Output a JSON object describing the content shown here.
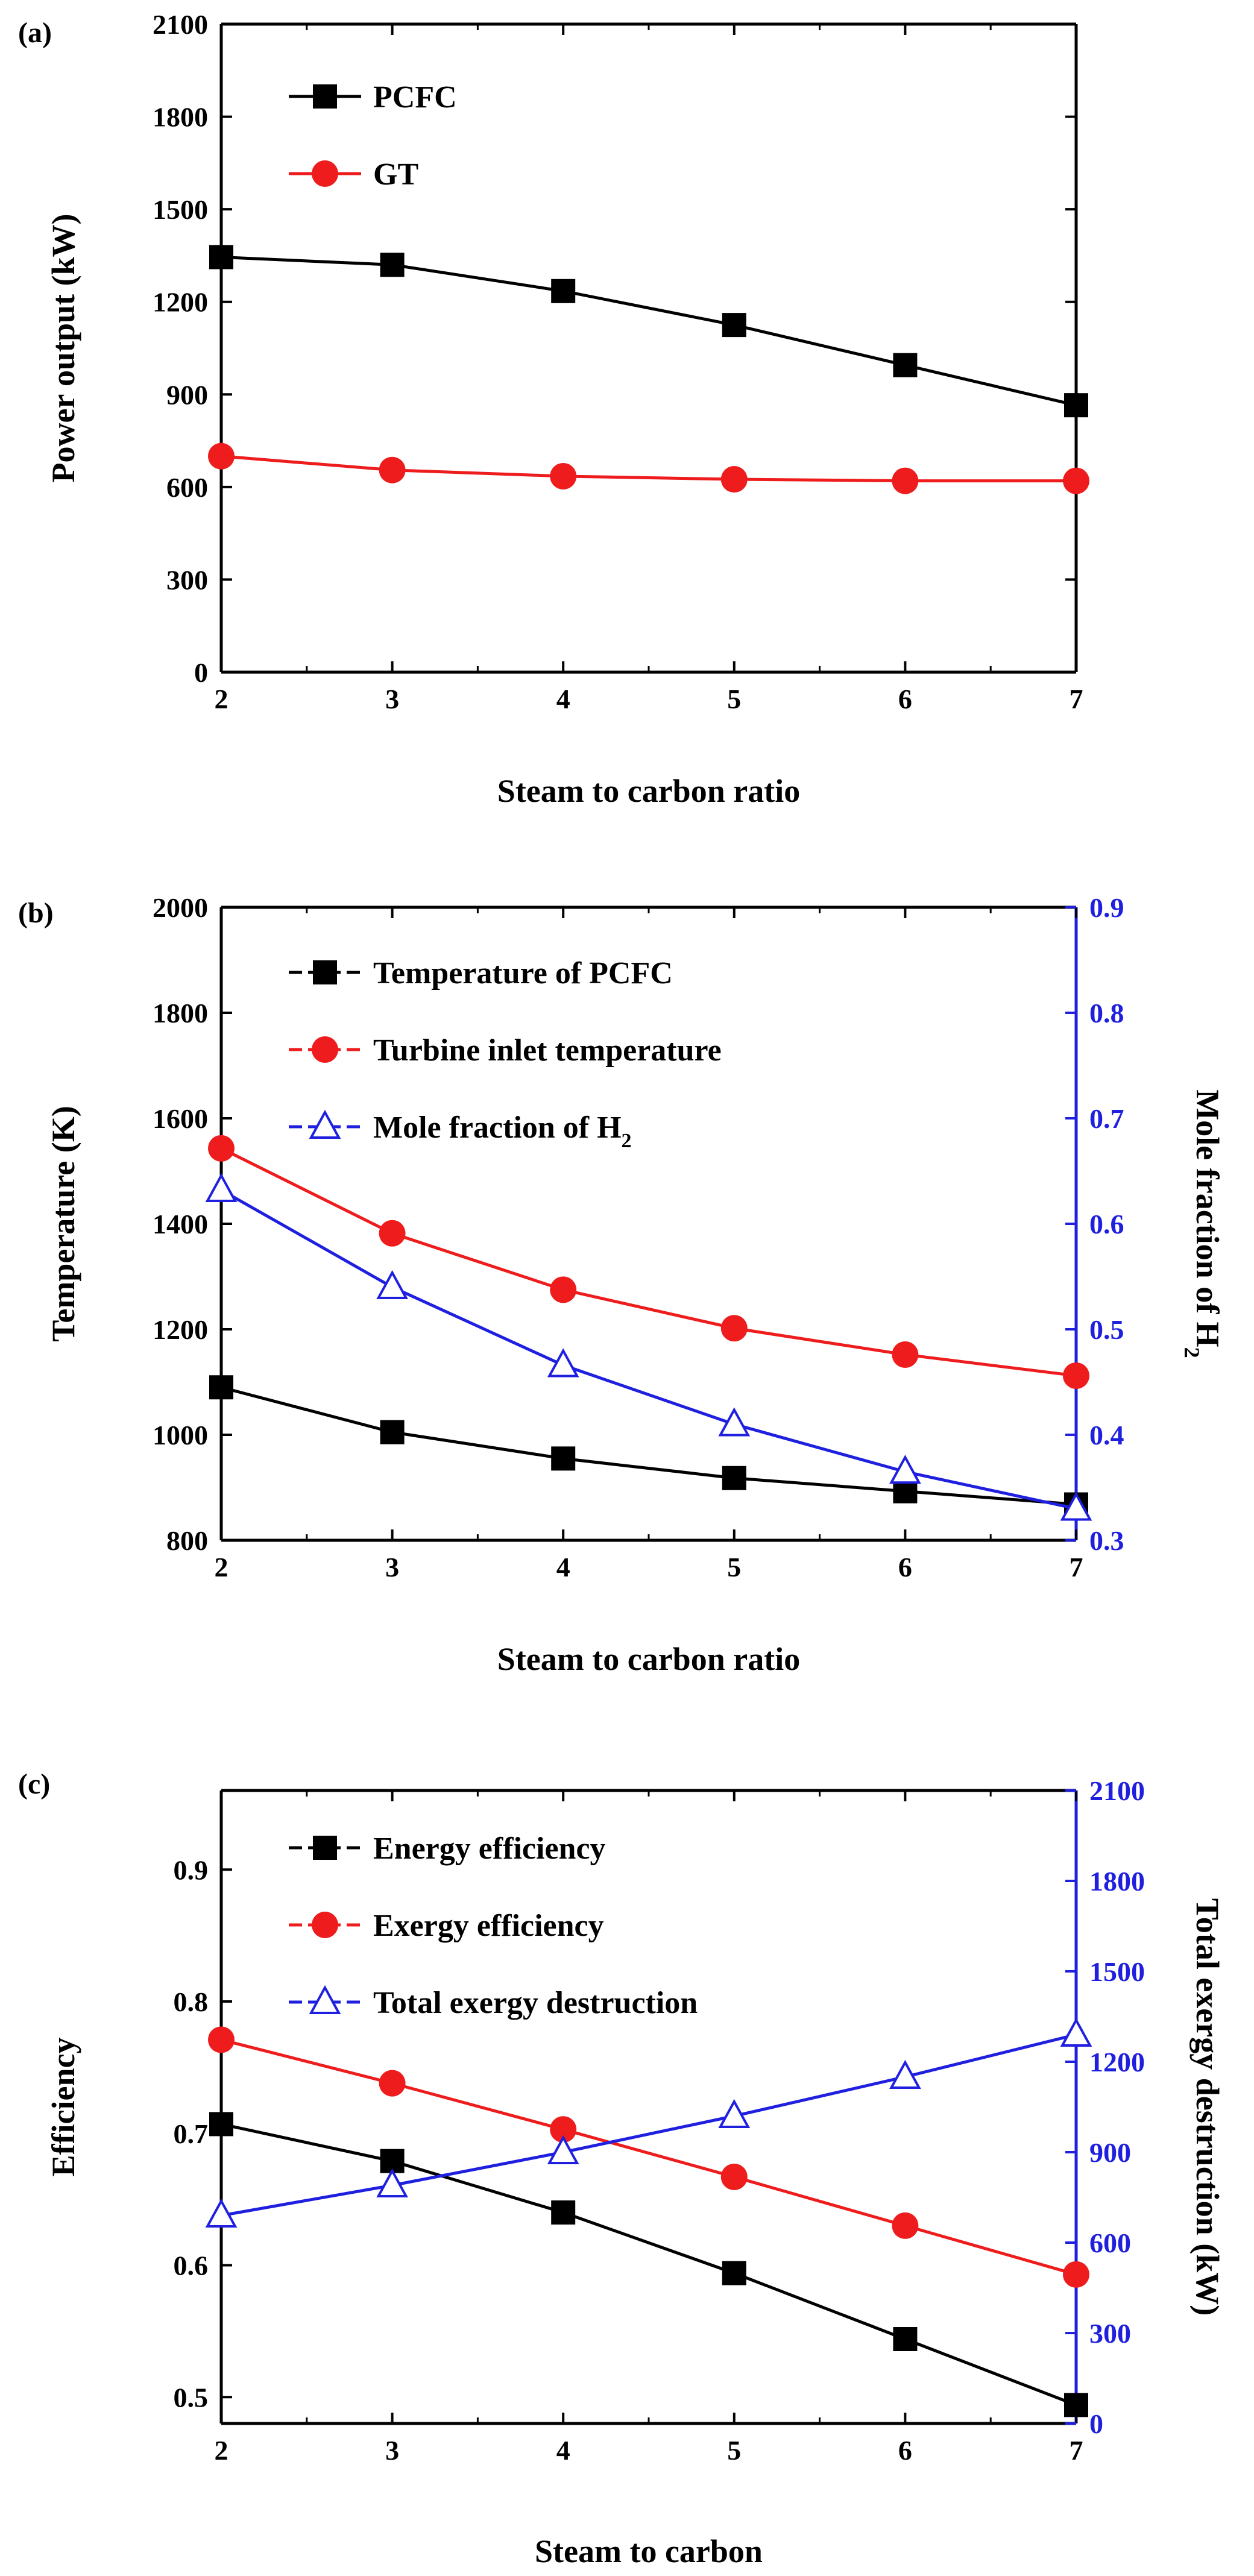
{
  "chart_data": [
    {
      "panel_label": "(a)",
      "type": "line",
      "x": [
        2,
        3,
        4,
        5,
        6,
        7
      ],
      "xlabel": "Steam to carbon ratio",
      "ylabel": "Power output (kW)",
      "xlim": [
        2,
        7
      ],
      "ylim": [
        0,
        2100
      ],
      "xticks": [
        "2",
        "3",
        "4",
        "5",
        "6",
        "7"
      ],
      "yticks": [
        "0",
        "300",
        "600",
        "900",
        "1200",
        "1500",
        "1800",
        "2100"
      ],
      "grid": false,
      "legend_position": "top-left",
      "series": [
        {
          "name": "PCFC",
          "values": [
            1345,
            1320,
            1235,
            1125,
            995,
            865
          ],
          "color": "#000000",
          "marker": "square",
          "axis": "left"
        },
        {
          "name": "GT",
          "values": [
            700,
            655,
            635,
            625,
            620,
            620
          ],
          "color": "#ee1c1c",
          "marker": "circle",
          "axis": "left"
        }
      ]
    },
    {
      "panel_label": "(b)",
      "type": "line",
      "x": [
        2,
        3,
        4,
        5,
        6,
        7
      ],
      "xlabel": "Steam to carbon ratio",
      "ylabel": "Temperature (K)",
      "ylabel_right": "Mole fraction of H",
      "ylabel_right_sub": "2",
      "xlim": [
        2,
        7
      ],
      "ylim": [
        800,
        2000
      ],
      "ylim_right": [
        0.3,
        0.9
      ],
      "xticks": [
        "2",
        "3",
        "4",
        "5",
        "6",
        "7"
      ],
      "yticks": [
        "800",
        "1000",
        "1200",
        "1400",
        "1600",
        "1800",
        "2000"
      ],
      "yticks_right": [
        "0.3",
        "0.4",
        "0.5",
        "0.6",
        "0.7",
        "0.8",
        "0.9"
      ],
      "grid": false,
      "legend_position": "top-left",
      "series": [
        {
          "name": "Temperature of PCFC",
          "values": [
            1090,
            1005,
            955,
            918,
            893,
            868
          ],
          "color": "#000000",
          "marker": "square",
          "axis": "left"
        },
        {
          "name": "Turbine inlet temperature",
          "values": [
            1543,
            1382,
            1275,
            1202,
            1152,
            1112
          ],
          "color": "#ee1c1c",
          "marker": "circle",
          "axis": "left"
        },
        {
          "name": "Mole fraction of H",
          "name_sub": "2",
          "values": [
            0.632,
            0.54,
            0.466,
            0.41,
            0.365,
            0.33
          ],
          "color": "#1f1fe0",
          "marker": "triangle",
          "axis": "right"
        }
      ]
    },
    {
      "panel_label": "(c)",
      "type": "line",
      "x": [
        2,
        3,
        4,
        5,
        6,
        7
      ],
      "xlabel": "Steam to carbon",
      "ylabel": "Efficiency",
      "ylabel_right": "Total exergy destruction (kW)",
      "xlim": [
        2,
        7
      ],
      "ylim": [
        0.48,
        0.96
      ],
      "ylim_right": [
        0,
        2100
      ],
      "xticks": [
        "2",
        "3",
        "4",
        "5",
        "6",
        "7"
      ],
      "yticks": [
        "0.5",
        "0.6",
        "0.7",
        "0.8",
        "0.9"
      ],
      "ytick_values": [
        0.5,
        0.6,
        0.7,
        0.8,
        0.9
      ],
      "yticks_right": [
        "0",
        "300",
        "600",
        "900",
        "1200",
        "1500",
        "1800",
        "2100"
      ],
      "grid": false,
      "legend_position": "top-left",
      "series": [
        {
          "name": "Energy efficiency",
          "values": [
            0.707,
            0.679,
            0.64,
            0.594,
            0.544,
            0.494
          ],
          "color": "#000000",
          "marker": "square",
          "axis": "left"
        },
        {
          "name": "Exergy efficiency",
          "values": [
            0.771,
            0.738,
            0.703,
            0.667,
            0.63,
            0.593
          ],
          "color": "#ee1c1c",
          "marker": "circle",
          "axis": "left"
        },
        {
          "name": "Total exergy destruction",
          "values": [
            690,
            790,
            900,
            1020,
            1150,
            1290
          ],
          "color": "#1f1fe0",
          "marker": "triangle",
          "axis": "right"
        }
      ]
    }
  ]
}
